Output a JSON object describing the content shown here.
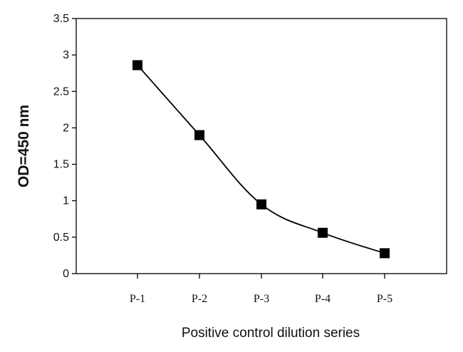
{
  "chart_data": {
    "type": "line",
    "title": "",
    "xlabel": "Positive control dilution series",
    "ylabel": "OD=450 nm",
    "categories": [
      "P-1",
      "P-2",
      "P-3",
      "P-4",
      "P-5"
    ],
    "series": [
      {
        "values": [
          2.86,
          1.9,
          0.95,
          0.56,
          0.28
        ],
        "color": "#000000",
        "marker": "square"
      }
    ],
    "ylim": [
      0,
      3.5
    ],
    "yticks": [
      "0",
      "0.5",
      "1",
      "1.5",
      "2",
      "2.5",
      "3",
      "3.5"
    ],
    "grid": false,
    "legend": "none"
  }
}
